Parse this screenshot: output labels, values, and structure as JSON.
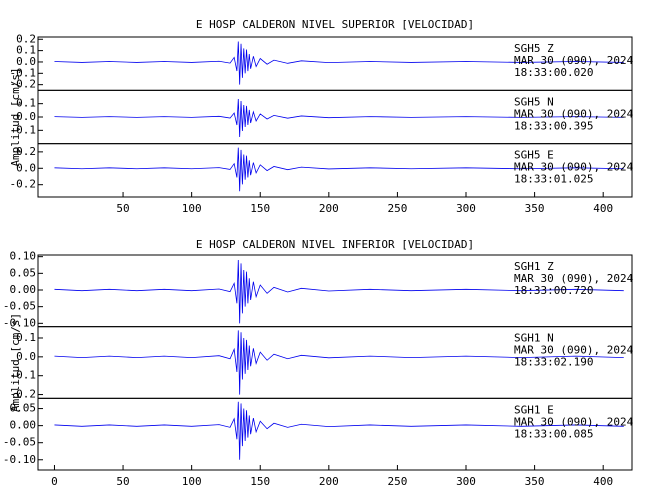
{
  "chart_data": [
    {
      "type": "line",
      "title": "E HOSP CALDERON NIVEL SUPERIOR [VELOCIDAD]",
      "y_label": "Amplitud [cm/s]",
      "x": [
        0,
        20,
        40,
        60,
        80,
        100,
        120,
        128,
        131,
        133,
        134,
        135,
        136,
        137,
        138,
        139,
        140,
        141,
        142,
        143,
        145,
        147,
        150,
        155,
        160,
        170,
        180,
        200,
        230,
        260,
        300,
        340,
        380,
        415
      ],
      "xlim": [
        -12,
        421
      ],
      "xticks": [
        50,
        100,
        150,
        200,
        250,
        300,
        350,
        400
      ],
      "series": [
        {
          "name": "SGH5   Z",
          "date": "MAR 30 (090), 2024",
          "time": "18:33:00.020",
          "color": "#0000ee",
          "ylim": [
            -0.25,
            0.22
          ],
          "yticks": [
            0.2,
            0.1,
            {
              "value": 0,
              "label": "0.0"
            },
            -0.1,
            -0.2
          ],
          "values": [
            0.004,
            -0.004,
            0.004,
            -0.004,
            0.004,
            -0.004,
            0.006,
            -0.01,
            0.04,
            -0.08,
            0.18,
            -0.2,
            0.16,
            -0.14,
            0.12,
            -0.1,
            0.11,
            -0.08,
            0.07,
            -0.06,
            0.05,
            -0.04,
            0.03,
            -0.02,
            0.016,
            -0.012,
            0.01,
            -0.006,
            0.004,
            -0.004,
            0.004,
            -0.004,
            0.004,
            -0.004
          ]
        },
        {
          "name": "SGH5   N",
          "date": "MAR 30 (090), 2024",
          "time": "18:33:00.395",
          "color": "#0000ee",
          "ylim": [
            -0.2,
            0.2
          ],
          "yticks": [
            0.1,
            {
              "value": 0,
              "label": "0.0"
            },
            -0.1
          ],
          "values": [
            0.003,
            -0.003,
            0.003,
            -0.003,
            0.003,
            -0.003,
            0.005,
            -0.008,
            0.03,
            -0.06,
            0.135,
            -0.15,
            0.12,
            -0.105,
            0.09,
            -0.075,
            0.083,
            -0.06,
            0.053,
            -0.045,
            0.038,
            -0.03,
            0.023,
            -0.015,
            0.012,
            -0.009,
            0.008,
            -0.005,
            0.003,
            -0.003,
            0.003,
            -0.003,
            0.003,
            -0.003
          ]
        },
        {
          "name": "SGH5   E",
          "date": "MAR 30 (090), 2024",
          "time": "18:33:01.025",
          "color": "#0000ee",
          "ylim": [
            -0.35,
            0.3
          ],
          "yticks": [
            0.2,
            {
              "value": 0,
              "label": "0.0"
            },
            -0.2
          ],
          "values": [
            0.006,
            -0.006,
            0.006,
            -0.006,
            0.006,
            -0.006,
            0.008,
            -0.014,
            0.056,
            -0.112,
            0.252,
            -0.28,
            0.224,
            -0.196,
            0.168,
            -0.14,
            0.154,
            -0.112,
            0.098,
            -0.084,
            0.07,
            -0.056,
            0.042,
            -0.028,
            0.022,
            -0.017,
            0.014,
            -0.008,
            0.006,
            -0.006,
            0.006,
            -0.006,
            0.006,
            -0.006
          ]
        }
      ]
    },
    {
      "type": "line",
      "title": "E HOSP CALDERON NIVEL INFERIOR [VELOCIDAD]",
      "y_label": "Amplitud [cm/s]",
      "x": [
        0,
        20,
        40,
        60,
        80,
        100,
        120,
        128,
        131,
        133,
        134,
        135,
        136,
        137,
        138,
        139,
        140,
        141,
        142,
        143,
        145,
        147,
        150,
        155,
        160,
        170,
        180,
        200,
        230,
        260,
        300,
        340,
        380,
        415
      ],
      "xlim": [
        -12,
        421
      ],
      "xticks": [
        0,
        50,
        100,
        150,
        200,
        250,
        300,
        350,
        400
      ],
      "series": [
        {
          "name": "SGH1   Z",
          "date": "MAR 30 (090), 2024",
          "time": "18:33:00.720",
          "color": "#0000ee",
          "ylim": [
            -0.11,
            0.105
          ],
          "yticks": [
            {
              "value": 0.1,
              "label": "0.10"
            },
            0.05,
            {
              "value": 0,
              "label": "0.00"
            },
            -0.05,
            {
              "value": -0.1,
              "label": "-0.10"
            }
          ],
          "values": [
            0.002,
            -0.002,
            0.002,
            -0.002,
            0.002,
            -0.002,
            0.003,
            -0.005,
            0.02,
            -0.04,
            0.09,
            -0.1,
            0.08,
            -0.07,
            0.06,
            -0.05,
            0.055,
            -0.04,
            0.035,
            -0.03,
            0.025,
            -0.02,
            0.015,
            -0.01,
            0.008,
            -0.006,
            0.005,
            -0.003,
            0.002,
            -0.002,
            0.002,
            -0.002,
            0.002,
            -0.002
          ]
        },
        {
          "name": "SGH1   N",
          "date": "MAR 30 (090), 2024",
          "time": "18:33:02.190",
          "color": "#0000ee",
          "ylim": [
            -0.22,
            0.16
          ],
          "yticks": [
            0.1,
            {
              "value": 0,
              "label": "0.0"
            },
            -0.1,
            -0.2
          ],
          "values": [
            0.004,
            -0.004,
            0.004,
            -0.004,
            0.004,
            -0.004,
            0.006,
            -0.01,
            0.04,
            -0.08,
            0.14,
            -0.2,
            0.13,
            -0.12,
            0.1,
            -0.09,
            0.09,
            -0.07,
            0.06,
            -0.05,
            0.045,
            -0.035,
            0.025,
            -0.018,
            0.014,
            -0.01,
            0.008,
            -0.005,
            0.004,
            -0.004,
            0.004,
            -0.004,
            0.004,
            -0.004
          ]
        },
        {
          "name": "SGH1   E",
          "date": "MAR 30 (090), 2024",
          "time": "18:33:00.085",
          "color": "#0000ee",
          "ylim": [
            -0.13,
            0.08
          ],
          "yticks": [
            0.05,
            {
              "value": 0,
              "label": "0.00"
            },
            -0.05,
            {
              "value": -0.1,
              "label": "-0.10"
            }
          ],
          "values": [
            0.002,
            -0.002,
            0.002,
            -0.002,
            0.002,
            -0.002,
            0.003,
            -0.005,
            0.02,
            -0.04,
            0.07,
            -0.1,
            0.065,
            -0.06,
            0.05,
            -0.045,
            0.045,
            -0.035,
            0.03,
            -0.025,
            0.022,
            -0.018,
            0.013,
            -0.009,
            0.007,
            -0.005,
            0.004,
            -0.003,
            0.002,
            -0.002,
            0.002,
            -0.002,
            0.002,
            -0.002
          ]
        }
      ]
    }
  ]
}
